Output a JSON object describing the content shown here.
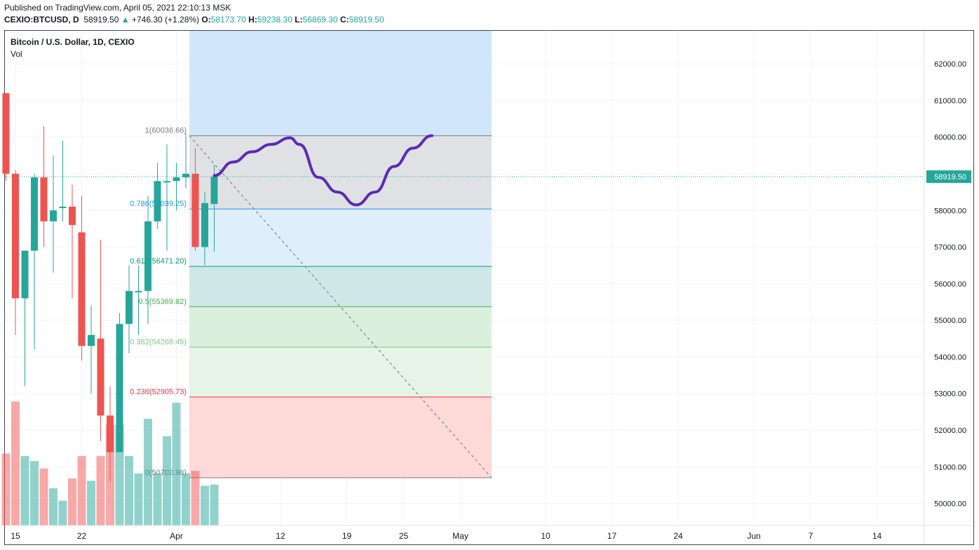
{
  "header": {
    "published": "Published on TradingView.com, April 05, 2021 22:10:13 MSK",
    "symbol": "CEXIO:BTCUSD, D",
    "last": "58919.50",
    "change": "+746.30 (+1.28%)",
    "o_label": "O:",
    "o_value": "58173.70",
    "h_label": "H:",
    "h_value": "59238.30",
    "l_label": "L:",
    "l_value": "56869.30",
    "c_label": "C:",
    "c_value": "58919.50"
  },
  "legend": {
    "title": "Bitcoin / U.S. Dollar, 1D, CEXIO",
    "volume": "Vol"
  },
  "colors": {
    "up": "#26a69a",
    "down": "#ef5350",
    "drawing": "#5b2ab5",
    "grid": "#f0f3fa"
  },
  "chart_data": {
    "type": "candlestick",
    "title": "Bitcoin / U.S. Dollar, 1D, CEXIO",
    "ylim": [
      49400,
      62900
    ],
    "yticks": [
      "50000.00",
      "51000.00",
      "52000.00",
      "53000.00",
      "54000.00",
      "55000.00",
      "56000.00",
      "57000.00",
      "58000.00",
      "59000.00",
      "60000.00",
      "61000.00",
      "62000.00"
    ],
    "xticks": [
      "15",
      "22",
      "Apr",
      "12",
      "19",
      "25",
      "May",
      "10",
      "17",
      "24",
      "Jun",
      "7",
      "14"
    ],
    "last_price_label": "58919.50",
    "candles": [
      {
        "d": "2021-03-14",
        "o": 61200,
        "h": 61200,
        "l": 58800,
        "c": 59000
      },
      {
        "d": "2021-03-15",
        "o": 59000,
        "h": 59100,
        "l": 54600,
        "c": 55600
      },
      {
        "d": "2021-03-16",
        "o": 55600,
        "h": 56900,
        "l": 53200,
        "c": 56900
      },
      {
        "d": "2021-03-17",
        "o": 56900,
        "h": 59000,
        "l": 54200,
        "c": 58900
      },
      {
        "d": "2021-03-18",
        "o": 58900,
        "h": 60300,
        "l": 57000,
        "c": 57700
      },
      {
        "d": "2021-03-19",
        "o": 57700,
        "h": 59500,
        "l": 56300,
        "c": 58000
      },
      {
        "d": "2021-03-20",
        "o": 58100,
        "h": 59900,
        "l": 57700,
        "c": 58100
      },
      {
        "d": "2021-03-21",
        "o": 58100,
        "h": 58700,
        "l": 55600,
        "c": 57600
      },
      {
        "d": "2021-03-22",
        "o": 57400,
        "h": 58400,
        "l": 53900,
        "c": 54300
      },
      {
        "d": "2021-03-23",
        "o": 54300,
        "h": 55400,
        "l": 53000,
        "c": 54600
      },
      {
        "d": "2021-03-24",
        "o": 54500,
        "h": 57200,
        "l": 51700,
        "c": 52400
      },
      {
        "d": "2021-03-25",
        "o": 52400,
        "h": 53200,
        "l": 50600,
        "c": 51400
      },
      {
        "d": "2021-03-26",
        "o": 51400,
        "h": 55200,
        "l": 51400,
        "c": 54900
      },
      {
        "d": "2021-03-27",
        "o": 54900,
        "h": 56500,
        "l": 54100,
        "c": 55800
      },
      {
        "d": "2021-03-28",
        "o": 55800,
        "h": 56500,
        "l": 54600,
        "c": 55800
      },
      {
        "d": "2021-03-29",
        "o": 55800,
        "h": 58400,
        "l": 54900,
        "c": 57700
      },
      {
        "d": "2021-03-30",
        "o": 57700,
        "h": 59300,
        "l": 57500,
        "c": 58800
      },
      {
        "d": "2021-03-31",
        "o": 58800,
        "h": 59800,
        "l": 56900,
        "c": 58800
      },
      {
        "d": "2021-04-01",
        "o": 58800,
        "h": 59300,
        "l": 58000,
        "c": 58900
      },
      {
        "d": "2021-04-02",
        "o": 58900,
        "h": 60100,
        "l": 58600,
        "c": 59000
      },
      {
        "d": "2021-04-03",
        "o": 59000,
        "h": 59700,
        "l": 56900,
        "c": 57000
      },
      {
        "d": "2021-04-04",
        "o": 57000,
        "h": 58500,
        "l": 56500,
        "c": 58200
      },
      {
        "d": "2021-04-05",
        "o": 58173.7,
        "h": 59238.3,
        "l": 56869.3,
        "c": 58919.5
      }
    ],
    "volume_relative": [
      0.58,
      1.0,
      0.56,
      0.52,
      0.46,
      0.3,
      0.2,
      0.38,
      0.56,
      0.36,
      0.56,
      0.81,
      0.81,
      0.56,
      0.42,
      0.86,
      0.42,
      0.72,
      0.99,
      0.42,
      0.44,
      0.32,
      0.33
    ],
    "fibonacci": {
      "levels": [
        {
          "ratio": "1",
          "price": "60036.66",
          "label": "1(60036.66)",
          "value": 60036.66,
          "color": "#787b86",
          "fill": "#e0e1e4"
        },
        {
          "ratio": "0.786",
          "price": "58039.25",
          "label": "0.786(58039.25)",
          "value": 58039.25,
          "color": "#2196f3",
          "fill": "#deeefb"
        },
        {
          "ratio": "0.618",
          "price": "56471.20",
          "label": "0.618(56471.20)",
          "value": 56471.2,
          "color": "#089981",
          "fill": "#cde8e7"
        },
        {
          "ratio": "0.5",
          "price": "55369.82",
          "label": "0.5(55369.82)",
          "value": 55369.82,
          "color": "#4caf50",
          "fill": "#dbf0dc"
        },
        {
          "ratio": "0.382",
          "price": "54268.45",
          "label": "0.382(54268.45)",
          "value": 54268.45,
          "color": "#81c784",
          "fill": "#e6f3e7"
        },
        {
          "ratio": "0.236",
          "price": "52905.73",
          "label": "0.236(52905.73)",
          "value": 52905.73,
          "color": "#f23645",
          "fill": "#fdd9d8"
        },
        {
          "ratio": "0",
          "price": "50702.98",
          "label": "0(50702.98)",
          "value": 50702.98,
          "color": "#787b86",
          "fill": null
        }
      ],
      "top_zone_fill": "#d0e6fa"
    },
    "forecast_path": [
      {
        "d": "2021-04-05",
        "v": 58950
      },
      {
        "d": "2021-04-07",
        "v": 59320
      },
      {
        "d": "2021-04-09",
        "v": 59600
      },
      {
        "d": "2021-04-11",
        "v": 59800
      },
      {
        "d": "2021-04-13",
        "v": 59980
      },
      {
        "d": "2021-04-14",
        "v": 59800
      },
      {
        "d": "2021-04-16",
        "v": 58900
      },
      {
        "d": "2021-04-18",
        "v": 58500
      },
      {
        "d": "2021-04-20",
        "v": 58150
      },
      {
        "d": "2021-04-22",
        "v": 58500
      },
      {
        "d": "2021-04-24",
        "v": 59200
      },
      {
        "d": "2021-04-26",
        "v": 59700
      },
      {
        "d": "2021-04-28",
        "v": 60040
      }
    ],
    "trend_line": [
      {
        "d": "2021-04-02",
        "v": 60036.66
      },
      {
        "d": "2021-05-04",
        "v": 50702.98
      }
    ]
  }
}
